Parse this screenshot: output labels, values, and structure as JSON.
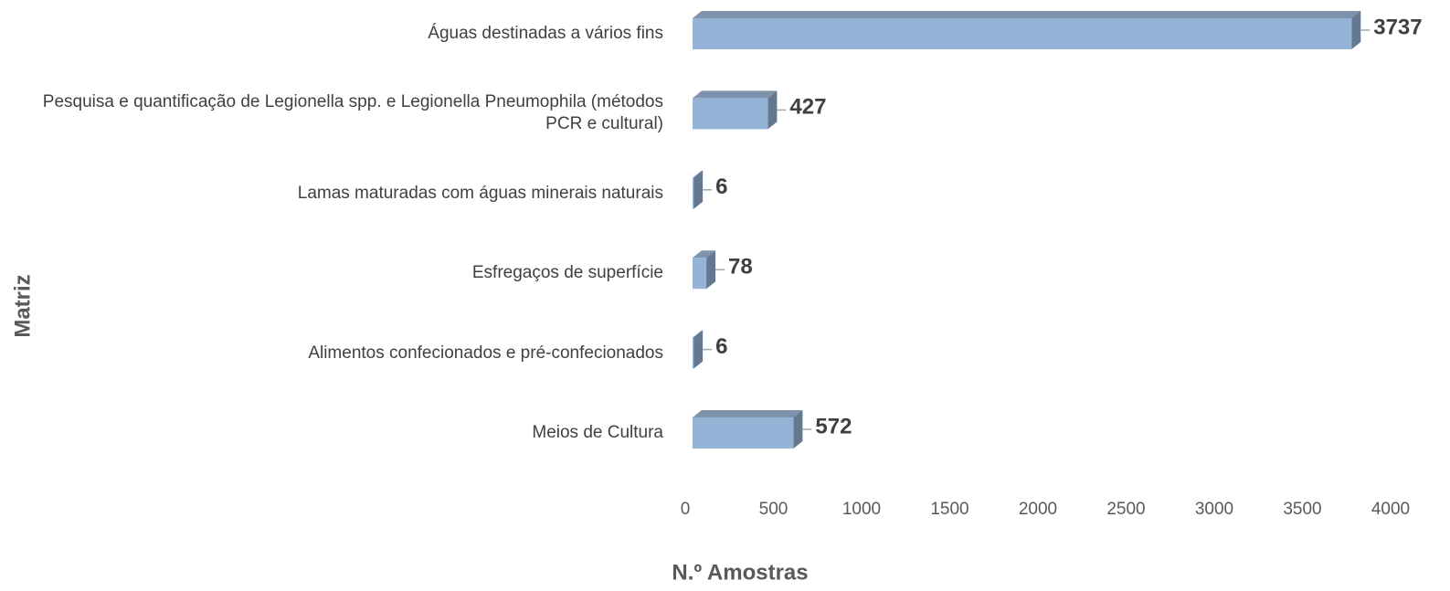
{
  "chart_data": {
    "type": "bar3d_horizontal",
    "categories": [
      "Águas destinadas a vários fins",
      "Pesquisa e quantificação de Legionella spp. e Legionella Pneumophila (métodos PCR e cultural)",
      "Lamas maturadas com águas minerais naturais",
      "Esfregaços de superfície",
      "Alimentos confecionados e pré-confecionados",
      "Meios de Cultura"
    ],
    "values": [
      3737,
      427,
      6,
      78,
      6,
      572
    ],
    "color": "#95b3d7",
    "xlim": [
      0,
      4000
    ],
    "xticks": [
      0,
      500,
      1000,
      1500,
      2000,
      2500,
      3000,
      3500,
      4000
    ],
    "xlabel": "N.º Amostras",
    "ylabel": "Matriz",
    "grid": false
  }
}
